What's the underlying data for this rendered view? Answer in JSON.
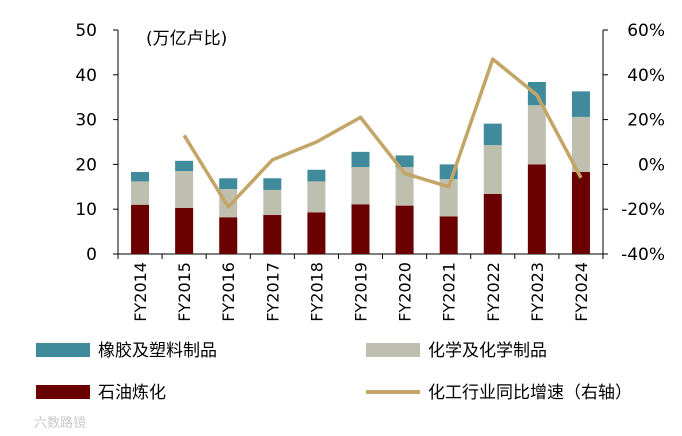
{
  "chart_data": {
    "type": "bar",
    "stacked": true,
    "unit_label": "(万亿卢比)",
    "categories": [
      "FY2014",
      "FY2015",
      "FY2016",
      "FY2017",
      "FY2018",
      "FY2019",
      "FY2020",
      "FY2021",
      "FY2022",
      "FY2023",
      "FY2024"
    ],
    "series": [
      {
        "name": "石油炼化",
        "color": "#6b0000",
        "values": [
          11.0,
          10.3,
          8.2,
          8.7,
          9.3,
          11.1,
          10.8,
          8.4,
          13.4,
          20.0,
          18.3
        ]
      },
      {
        "name": "化学及化学制品",
        "color": "#bfbfaf",
        "values": [
          5.2,
          8.2,
          6.3,
          5.6,
          6.9,
          8.3,
          8.6,
          8.3,
          10.9,
          13.2,
          12.3
        ]
      },
      {
        "name": "橡胶及塑料制品",
        "color": "#3f8b9b",
        "values": [
          2.1,
          2.3,
          2.4,
          2.6,
          2.6,
          3.4,
          2.6,
          3.3,
          4.8,
          5.2,
          5.7
        ]
      }
    ],
    "line": {
      "name": "化工行业同比增速（右轴）",
      "color": "#c3a566",
      "values": [
        null,
        13,
        -19,
        2,
        10,
        21,
        -4,
        -10,
        47,
        31,
        -6
      ]
    },
    "y_left": {
      "min": 0,
      "max": 50,
      "ticks": [
        "0",
        "10",
        "20",
        "30",
        "40",
        "50"
      ]
    },
    "y_right": {
      "min": -40,
      "max": 60,
      "ticks": [
        "-40%",
        "-20%",
        "0%",
        "20%",
        "40%",
        "60%"
      ]
    },
    "legend": [
      {
        "label": "橡胶及塑料制品",
        "kind": "box",
        "color": "#3f8b9b"
      },
      {
        "label": "化学及化学制品",
        "kind": "box",
        "color": "#bfbfaf"
      },
      {
        "label": "石油炼化",
        "kind": "box",
        "color": "#6b0000"
      },
      {
        "label": "化工行业同比增速（右轴）",
        "kind": "line",
        "color": "#c3a566"
      }
    ],
    "watermark": "六数路镜"
  }
}
